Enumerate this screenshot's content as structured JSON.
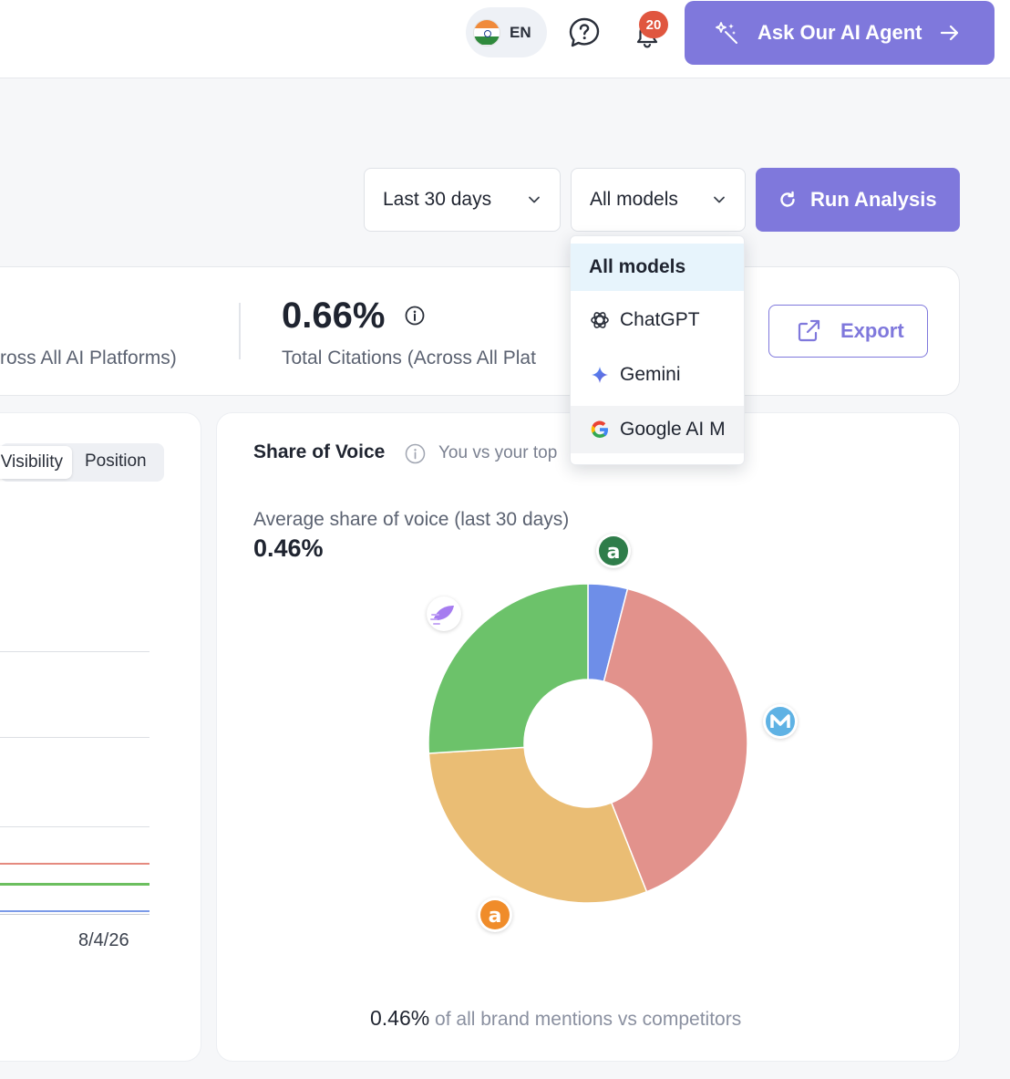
{
  "header": {
    "language": {
      "code": "EN"
    },
    "notifications": {
      "count": "20"
    },
    "ask_agent_label": "Ask Our AI Agent"
  },
  "filters": {
    "date_range": "Last 30 days",
    "model": "All models",
    "run_label": "Run Analysis"
  },
  "model_dropdown": {
    "options": [
      {
        "label": "All models",
        "icon": "grid",
        "selected": true
      },
      {
        "label": "ChatGPT",
        "icon": "chatgpt-icon"
      },
      {
        "label": "Gemini",
        "icon": "gemini-icon"
      },
      {
        "label": "Google AI M",
        "icon": "google-icon"
      }
    ]
  },
  "stats": {
    "visibility_label": "ross All AI Platforms)",
    "citations_value": "0.66%",
    "citations_label": "Total Citations (Across All Plat"
  },
  "export_label": "Export",
  "visibility_chart": {
    "toggle": {
      "visibility": "Visibility",
      "position": "Position",
      "active": "visibility"
    },
    "x_tick": "8/4/26"
  },
  "share_of_voice": {
    "title": "Share of Voice",
    "subtitle": "You vs your top",
    "avg_label": "Average share of voice (last 30 days)",
    "avg_value": "0.46%",
    "footer_value": "0.46%",
    "footer_text": " of all brand mentions vs competitors"
  },
  "chart_data": {
    "type": "pie",
    "donut": true,
    "values": [
      4,
      40,
      30,
      26
    ],
    "colors": [
      "#6e8ee8",
      "#e2928c",
      "#eabd74",
      "#6cc26a"
    ],
    "series_logos": [
      "green-a-logo",
      "blue-m-logo",
      "orange-a-logo",
      "purple-rocket-logo"
    ]
  }
}
